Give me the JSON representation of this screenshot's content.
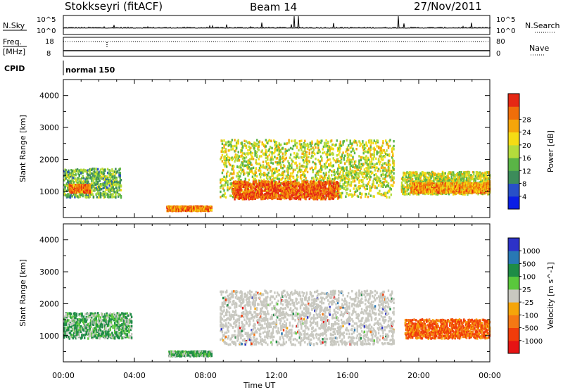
{
  "header": {
    "station": "Stokkseyri (fitACF)",
    "beam": "Beam 14",
    "date": "27/Nov/2011"
  },
  "top_panels": {
    "nsky_label": "N.Sky",
    "nsky_ticks": [
      "10^5",
      "10^0"
    ],
    "nsearch_label": "N.Search",
    "nsearch_ticks": [
      "10^5",
      "10^0"
    ],
    "freq_label": "Freq.",
    "freq_unit": "[MHz]",
    "freq_ticks": [
      "18",
      "8"
    ],
    "nave_label": "Nave",
    "nave_ticks": [
      "80",
      "0"
    ],
    "cpid_label": "CPID",
    "cpid_value": "normal 150"
  },
  "colors": {
    "power": [
      "#0a1ee6",
      "#2850c8",
      "#3c8c5a",
      "#5ab446",
      "#b4dc3c",
      "#f5dc14",
      "#f5a50a",
      "#f06e0a",
      "#e62814"
    ],
    "velocity": [
      "#2d32c8",
      "#2878b4",
      "#1e8c46",
      "#5ac83c",
      "#c8c8c0",
      "#f5a50a",
      "#f57814",
      "#f03c0a",
      "#e61414"
    ]
  },
  "chart_data": [
    {
      "type": "heatmap",
      "xlabel": "Time UT",
      "ylabel": "Slant Range [km]",
      "x_ticks": [
        "00:00",
        "04:00",
        "08:00",
        "12:00",
        "16:00",
        "20:00",
        "00:00"
      ],
      "xlim_hours": [
        0,
        24
      ],
      "ylim_km": [
        180,
        4500
      ],
      "y_ticks": [
        1000,
        2000,
        3000,
        4000
      ],
      "colorbar_label": "Power [dB]",
      "colorbar_ticks": [
        "4",
        "8",
        "12",
        "16",
        "20",
        "24",
        "28"
      ],
      "colorbar_range": [
        0,
        30
      ],
      "regions": [
        {
          "t": [
            0.0,
            3.2
          ],
          "range_km": [
            800,
            1700
          ],
          "level": 12
        },
        {
          "t": [
            0.3,
            1.5
          ],
          "range_km": [
            950,
            1200
          ],
          "level": 24
        },
        {
          "t": [
            5.8,
            8.3
          ],
          "range_km": [
            380,
            520
          ],
          "level": 24
        },
        {
          "t": [
            8.8,
            18.6
          ],
          "range_km": [
            800,
            2600
          ],
          "level": 16
        },
        {
          "t": [
            9.5,
            15.5
          ],
          "range_km": [
            750,
            1300
          ],
          "level": 26
        },
        {
          "t": [
            19.0,
            24.0
          ],
          "range_km": [
            900,
            1600
          ],
          "level": 16
        },
        {
          "t": [
            19.5,
            24.0
          ],
          "range_km": [
            950,
            1250
          ],
          "level": 22
        }
      ]
    },
    {
      "type": "heatmap",
      "xlabel": "Time UT",
      "ylabel": "Slant Range [km]",
      "x_ticks": [
        "00:00",
        "04:00",
        "08:00",
        "12:00",
        "16:00",
        "20:00",
        "00:00"
      ],
      "xlim_hours": [
        0,
        24
      ],
      "ylim_km": [
        180,
        4500
      ],
      "y_ticks": [
        1000,
        2000,
        3000,
        4000
      ],
      "colorbar_label": "Velocity [m s^-1]",
      "colorbar_ticks": [
        "1000",
        "500",
        "100",
        "25",
        "-25",
        "-100",
        "-500",
        "-1000"
      ],
      "regions": [
        {
          "t": [
            0.0,
            3.8
          ],
          "range_km": [
            900,
            1700
          ],
          "velocity": 100
        },
        {
          "t": [
            5.9,
            8.3
          ],
          "range_km": [
            350,
            500
          ],
          "velocity": 100
        },
        {
          "t": [
            8.8,
            18.6
          ],
          "range_km": [
            700,
            2400
          ],
          "velocity": 0
        },
        {
          "t": [
            19.2,
            24.0
          ],
          "range_km": [
            900,
            1500
          ],
          "velocity": -300
        }
      ]
    }
  ]
}
